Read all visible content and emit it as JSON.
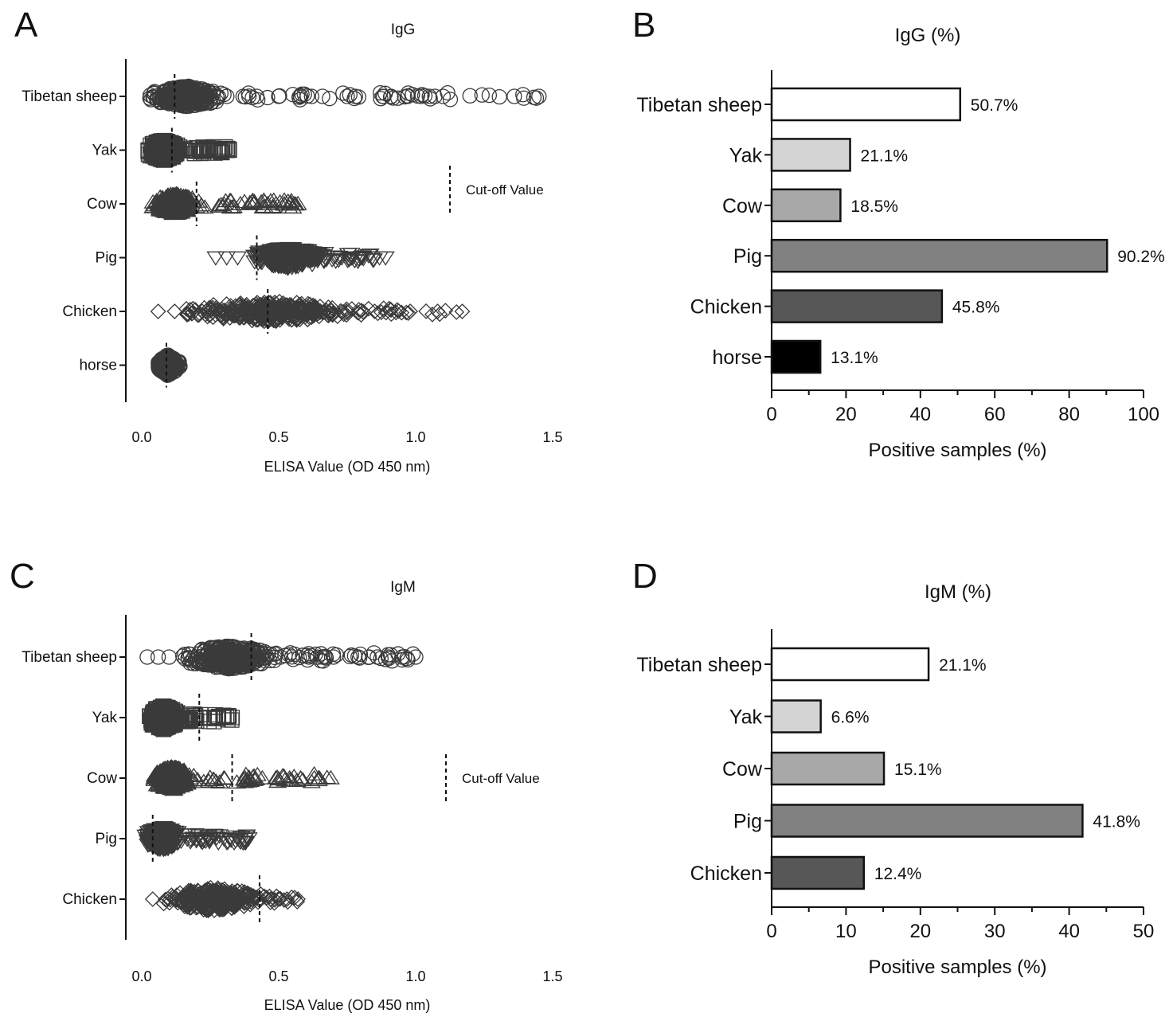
{
  "chart_data": [
    {
      "panel": "A",
      "type": "scatter",
      "title": "IgG",
      "xlabel": "ELISA Value (OD 450 nm)",
      "ylabel": "",
      "xlim": [
        0.0,
        1.5
      ],
      "xticks": [
        0.0,
        0.5,
        1.0,
        1.5
      ],
      "xtick_labels": [
        "0.0",
        "0.5",
        "1.0",
        "1.5"
      ],
      "legend": {
        "label": "Cut-off Value",
        "position": "right"
      },
      "categories": [
        "Tibetan sheep",
        "Yak",
        "Cow",
        "Pig",
        "Chicken",
        "horse"
      ],
      "series": [
        {
          "name": "Tibetan sheep",
          "marker": "circle",
          "range": [
            0.02,
            1.45
          ],
          "core": [
            0.03,
            0.3
          ],
          "cutoff": 0.12,
          "outliers": [
            0.37,
            0.42,
            0.5,
            0.58,
            0.62,
            0.66,
            0.75,
            0.78,
            0.88,
            0.91,
            0.97,
            1.02,
            1.05,
            1.07,
            1.1,
            1.36,
            1.45
          ]
        },
        {
          "name": "Yak",
          "marker": "square",
          "range": [
            0.02,
            0.32
          ],
          "core": [
            0.02,
            0.14
          ],
          "cutoff": 0.11,
          "outliers": [
            0.22,
            0.25,
            0.28,
            0.3,
            0.32
          ]
        },
        {
          "name": "Cow",
          "marker": "triangle-up",
          "range": [
            0.03,
            0.57
          ],
          "core": [
            0.04,
            0.2
          ],
          "cutoff": 0.2,
          "outliers": [
            0.3,
            0.36,
            0.41,
            0.46,
            0.49,
            0.52,
            0.54,
            0.57
          ]
        },
        {
          "name": "Pig",
          "marker": "triangle-down",
          "range": [
            0.27,
            0.89
          ],
          "core": [
            0.4,
            0.67
          ],
          "cutoff": 0.42,
          "outliers": [
            0.27,
            0.31,
            0.35,
            0.73,
            0.77,
            0.8,
            0.84,
            0.89
          ]
        },
        {
          "name": "Chicken",
          "marker": "diamond",
          "range": [
            0.06,
            1.17
          ],
          "core": [
            0.15,
            0.8
          ],
          "cutoff": 0.46,
          "outliers": [
            0.06,
            0.12,
            0.85,
            0.98,
            1.08,
            1.17
          ]
        },
        {
          "name": "horse",
          "marker": "circle",
          "range": [
            0.05,
            0.14
          ],
          "core": [
            0.06,
            0.13
          ],
          "cutoff": 0.09,
          "outliers": []
        }
      ]
    },
    {
      "panel": "B",
      "type": "bar",
      "orientation": "horizontal",
      "title": "IgG (%)",
      "xlabel": "Positive samples (%)",
      "ylabel": "",
      "xlim": [
        0,
        100
      ],
      "xticks": [
        0,
        20,
        40,
        60,
        80,
        100
      ],
      "xtick_labels": [
        "0",
        "20",
        "40",
        "60",
        "80",
        "100"
      ],
      "categories": [
        "Tibetan sheep",
        "Yak",
        "Cow",
        "Pig",
        "Chicken",
        "horse"
      ],
      "values": [
        50.7,
        21.1,
        18.5,
        90.2,
        45.8,
        13.1
      ],
      "value_labels": [
        "50.7%",
        "21.1%",
        "18.5%",
        "90.2%",
        "45.8%",
        "13.1%"
      ],
      "colors": [
        "#ffffff",
        "#d4d4d4",
        "#a8a8a8",
        "#818181",
        "#575757",
        "#000000"
      ]
    },
    {
      "panel": "C",
      "type": "scatter",
      "title": "IgM",
      "xlabel": "ELISA Value (OD 450 nm)",
      "ylabel": "",
      "xlim": [
        0.0,
        1.5
      ],
      "xticks": [
        0.0,
        0.5,
        1.0,
        1.5
      ],
      "xtick_labels": [
        "0.0",
        "0.5",
        "1.0",
        "1.5"
      ],
      "legend": {
        "label": "Cut-off Value",
        "position": "right"
      },
      "categories": [
        "Tibetan sheep",
        "Yak",
        "Cow",
        "Pig",
        "Chicken"
      ],
      "series": [
        {
          "name": "Tibetan sheep",
          "marker": "circle",
          "range": [
            0.02,
            1.0
          ],
          "core": [
            0.14,
            0.5
          ],
          "cutoff": 0.4,
          "outliers": [
            0.02,
            0.06,
            0.1,
            0.61,
            0.66,
            0.7,
            0.79,
            0.83,
            0.86,
            0.9,
            0.95,
            1.0
          ]
        },
        {
          "name": "Yak",
          "marker": "square",
          "range": [
            0.02,
            0.33
          ],
          "core": [
            0.02,
            0.14
          ],
          "cutoff": 0.21,
          "outliers": [
            0.22,
            0.25,
            0.28,
            0.3,
            0.33
          ]
        },
        {
          "name": "Cow",
          "marker": "triangle-up",
          "range": [
            0.03,
            0.69
          ],
          "core": [
            0.04,
            0.18
          ],
          "cutoff": 0.33,
          "outliers": [
            0.3,
            0.39,
            0.44,
            0.49,
            0.54,
            0.58,
            0.63,
            0.69
          ]
        },
        {
          "name": "Pig",
          "marker": "triangle-down",
          "range": [
            0.01,
            0.39
          ],
          "core": [
            0.01,
            0.14
          ],
          "cutoff": 0.04,
          "outliers": [
            0.2,
            0.25,
            0.3,
            0.35,
            0.39
          ]
        },
        {
          "name": "Chicken",
          "marker": "diamond",
          "range": [
            0.04,
            0.57
          ],
          "core": [
            0.08,
            0.44
          ],
          "cutoff": 0.43,
          "outliers": [
            0.04,
            0.47,
            0.5,
            0.53,
            0.57
          ]
        }
      ]
    },
    {
      "panel": "D",
      "type": "bar",
      "orientation": "horizontal",
      "title": "IgM (%)",
      "xlabel": "Positive samples (%)",
      "ylabel": "",
      "xlim": [
        0,
        50
      ],
      "xticks": [
        0,
        10,
        20,
        30,
        40,
        50
      ],
      "xtick_labels": [
        "0",
        "10",
        "20",
        "30",
        "40",
        "50"
      ],
      "categories": [
        "Tibetan sheep",
        "Yak",
        "Cow",
        "Pig",
        "Chicken"
      ],
      "values": [
        21.1,
        6.6,
        15.1,
        41.8,
        12.4
      ],
      "value_labels": [
        "21.1%",
        "6.6%",
        "15.1%",
        "41.8%",
        "12.4%"
      ],
      "colors": [
        "#ffffff",
        "#d4d4d4",
        "#a8a8a8",
        "#818181",
        "#575757"
      ]
    }
  ],
  "panel_letters": [
    "A",
    "B",
    "C",
    "D"
  ]
}
